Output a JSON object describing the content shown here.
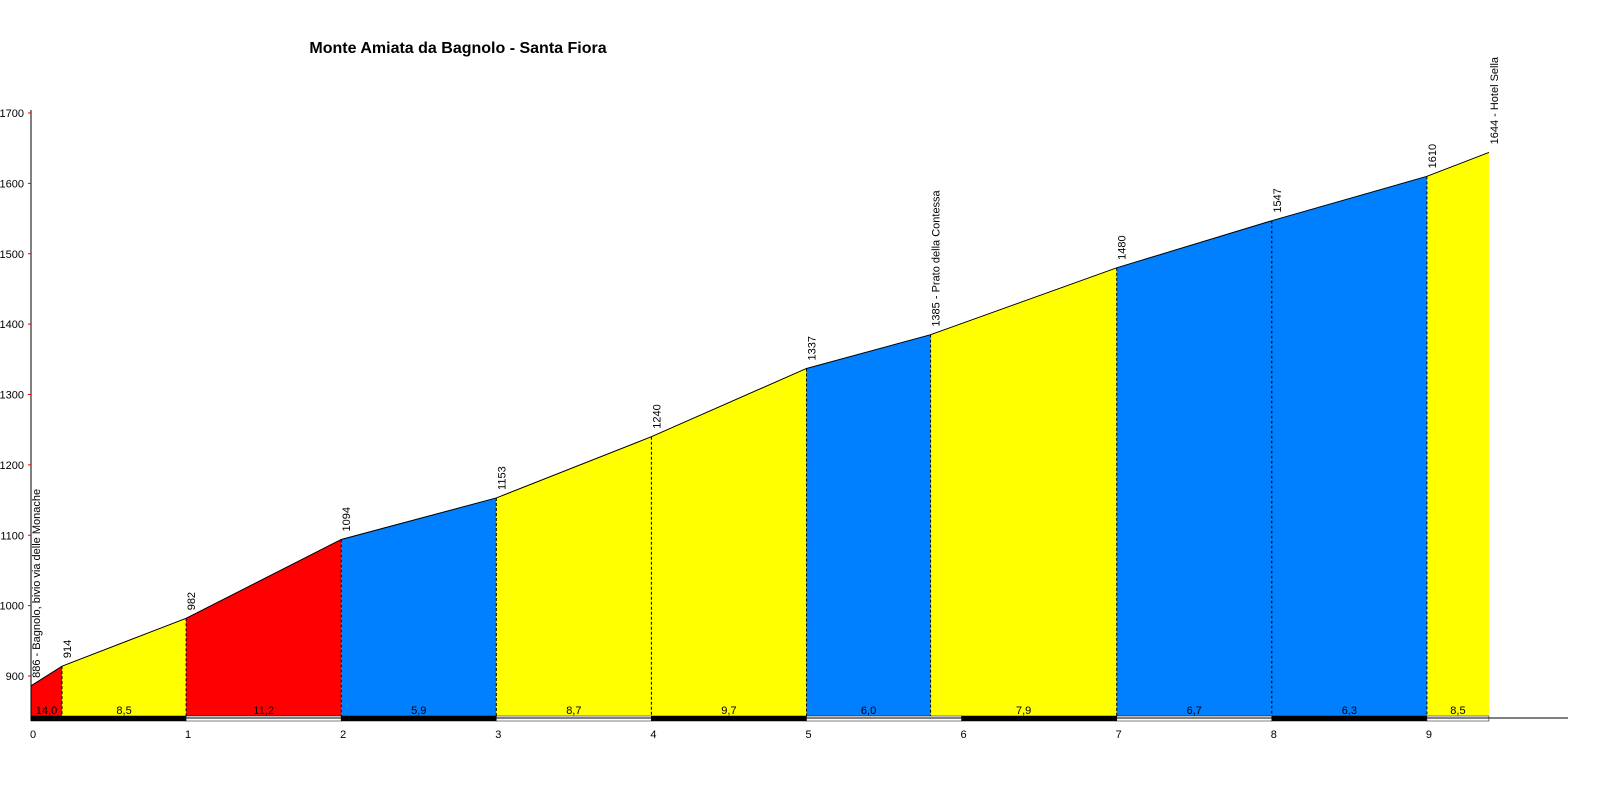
{
  "chart_data": {
    "type": "area",
    "title": "Monte Amiata da Bagnolo - Santa Fiora",
    "xlabel": "",
    "ylabel": "",
    "xlim": [
      0,
      10
    ],
    "ylim": [
      843,
      1700
    ],
    "x_ticks": [
      "0",
      "1",
      "2",
      "3",
      "4",
      "5",
      "6",
      "7",
      "8",
      "9"
    ],
    "y_ticks": [
      "900",
      "1000",
      "1100",
      "1200",
      "1300",
      "1400",
      "1500",
      "1600",
      "1700"
    ],
    "points": [
      {
        "km": 0,
        "elev": 886,
        "label": "886 - Bagnolo, bivio via delle Monache"
      },
      {
        "km": 0.2,
        "elev": 914,
        "label": "914"
      },
      {
        "km": 1,
        "elev": 982,
        "label": "982"
      },
      {
        "km": 2,
        "elev": 1094,
        "label": "1094"
      },
      {
        "km": 3,
        "elev": 1153,
        "label": "1153"
      },
      {
        "km": 4,
        "elev": 1240,
        "label": "1240"
      },
      {
        "km": 5,
        "elev": 1337,
        "label": "1337"
      },
      {
        "km": 5.8,
        "elev": 1385,
        "label": "1385 - Prato della Contessa"
      },
      {
        "km": 7,
        "elev": 1480,
        "label": "1480"
      },
      {
        "km": 8,
        "elev": 1547,
        "label": "1547"
      },
      {
        "km": 9,
        "elev": 1610,
        "label": "1610"
      },
      {
        "km": 9.4,
        "elev": 1644,
        "label": "1644 - Hotel Sella"
      }
    ],
    "segments": [
      {
        "gradient": "14,0",
        "color": "#ff0000"
      },
      {
        "gradient": "8,5",
        "color": "#ffff00"
      },
      {
        "gradient": "11,2",
        "color": "#ff0000"
      },
      {
        "gradient": "5,9",
        "color": "#0080ff"
      },
      {
        "gradient": "8,7",
        "color": "#ffff00"
      },
      {
        "gradient": "9,7",
        "color": "#ffff00"
      },
      {
        "gradient": "6,0",
        "color": "#0080ff"
      },
      {
        "gradient": "7,9",
        "color": "#ffff00"
      },
      {
        "gradient": "6,7",
        "color": "#0080ff"
      },
      {
        "gradient": "6,3",
        "color": "#0080ff"
      },
      {
        "gradient": "8,5",
        "color": "#ffff00"
      }
    ]
  }
}
